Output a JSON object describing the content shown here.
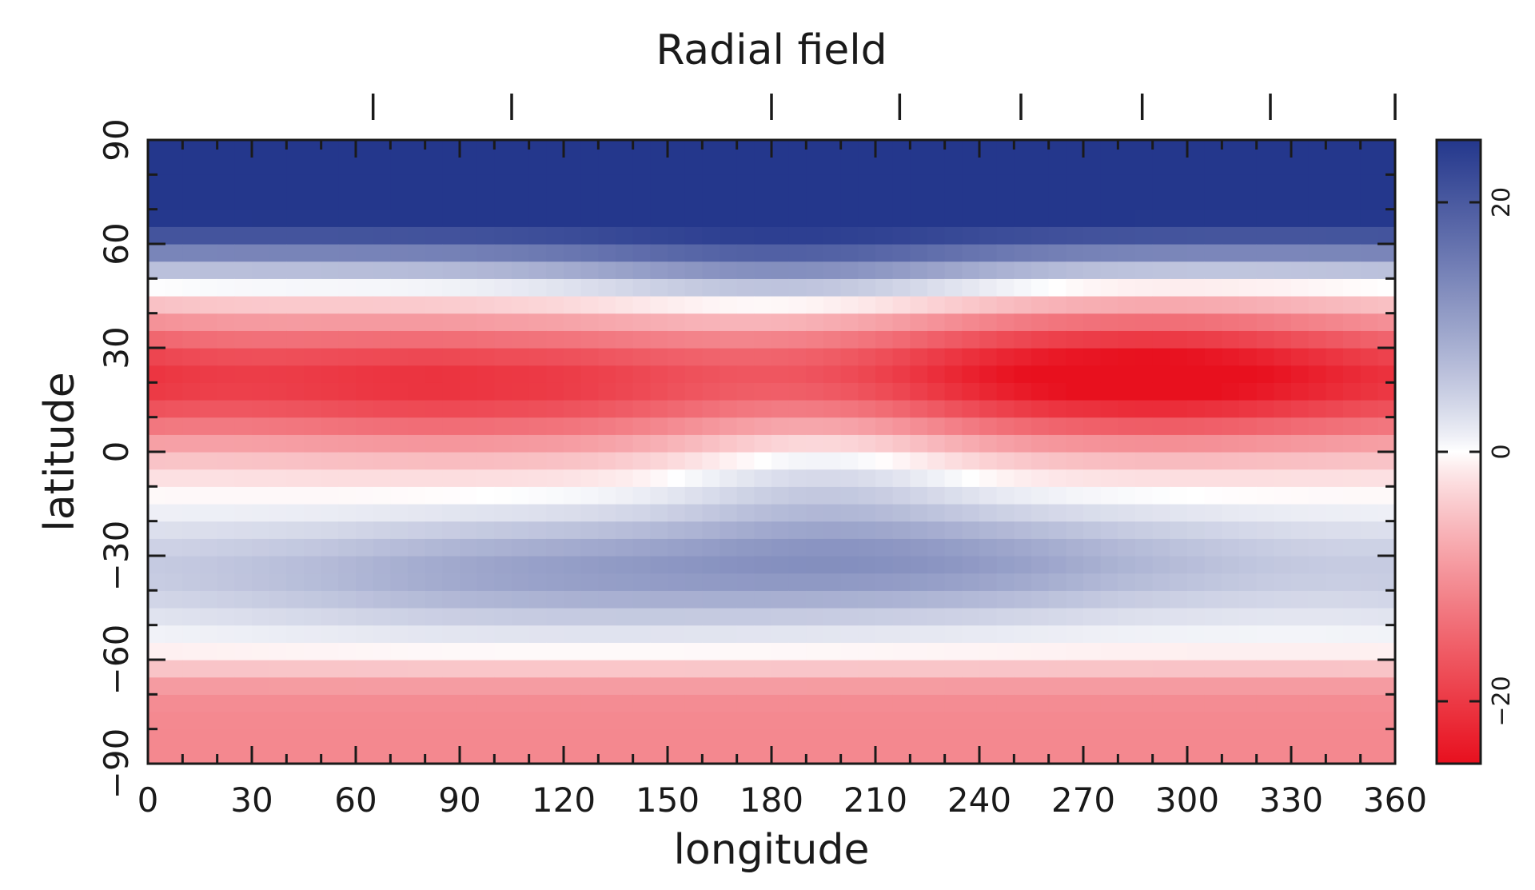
{
  "chart_data": {
    "type": "heatmap",
    "title": "Radial field",
    "xlabel": "longitude",
    "ylabel": "latitude",
    "xlim": [
      0,
      360
    ],
    "ylim": [
      -90,
      90
    ],
    "x_ticks": [
      0,
      30,
      60,
      90,
      120,
      150,
      180,
      210,
      240,
      270,
      300,
      330,
      360
    ],
    "y_ticks": [
      -90,
      -60,
      -30,
      0,
      30,
      60,
      90
    ],
    "y_tick_labels": [
      "−90",
      "−60",
      "−30",
      "0",
      "30",
      "60",
      "90"
    ],
    "top_markers_longitude": [
      65,
      105,
      180,
      217,
      252,
      287,
      324,
      360
    ],
    "colorbar": {
      "range": [
        -25,
        25
      ],
      "ticks": [
        -20,
        0,
        20
      ],
      "tick_labels": [
        "−20",
        "0",
        "20"
      ],
      "colormap": {
        "negative": "#e8101e",
        "zero": "#ffffff",
        "positive": "#24378c"
      }
    },
    "features": [
      {
        "kind": "positive-cap",
        "latitude_range": [
          60,
          90
        ],
        "value": 25
      },
      {
        "kind": "negative-lobe",
        "center": [
          95,
          20
        ],
        "value": -19
      },
      {
        "kind": "negative-lobe",
        "center": [
          282,
          20
        ],
        "value": -24
      },
      {
        "kind": "positive-lobe",
        "center": [
          100,
          -35
        ],
        "value": 8
      },
      {
        "kind": "positive-lobe",
        "center": [
          232,
          -32
        ],
        "value": 9
      },
      {
        "kind": "negative-band",
        "latitude_range": [
          -90,
          -62
        ],
        "value": -11
      }
    ],
    "grid": false
  }
}
